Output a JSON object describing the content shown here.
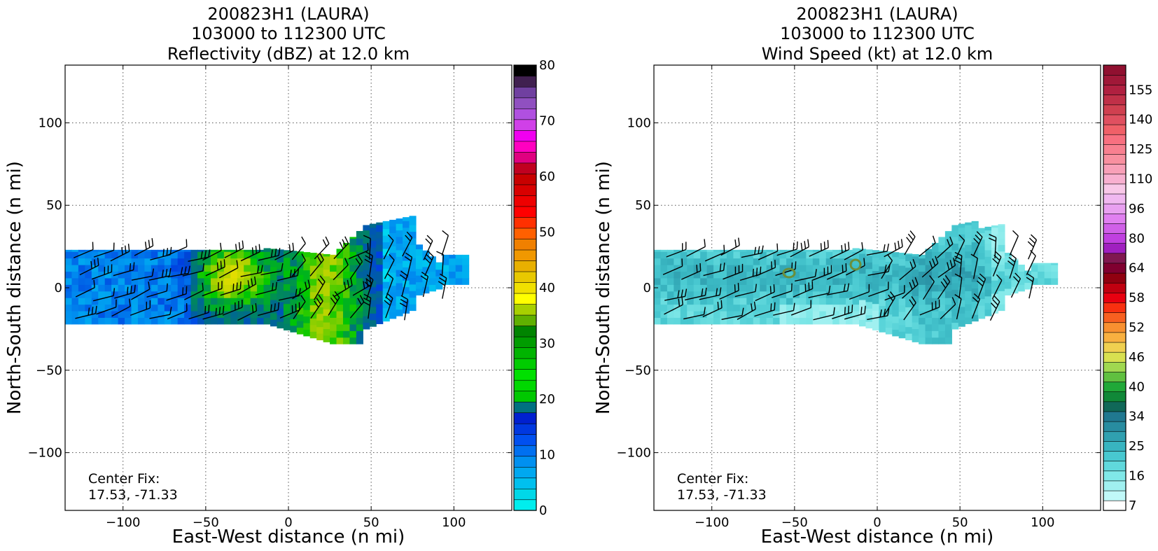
{
  "chart_data": [
    {
      "type": "heatmap",
      "title_lines": [
        "200823H1 (LAURA)",
        "103000 to 112300 UTC",
        "Reflectivity (dBZ) at 12.0 km"
      ],
      "xlabel": "East-West distance (n mi)",
      "ylabel": "North-South distance (n mi)",
      "xlim": [
        -135,
        135
      ],
      "ylim": [
        -135,
        135
      ],
      "xticks": [
        -100,
        -50,
        0,
        50,
        100
      ],
      "yticks": [
        -100,
        -50,
        0,
        50,
        100
      ],
      "grid": true,
      "annotation": [
        "Center Fix:",
        "17.53, -71.33"
      ],
      "colorbar": {
        "min": 0,
        "max": 80,
        "ticks": [
          0,
          10,
          20,
          30,
          40,
          50,
          60,
          70,
          80
        ],
        "colors": [
          "#00eeee",
          "#00d8e8",
          "#00c0ee",
          "#00a8f0",
          "#0090f0",
          "#0070f0",
          "#0050f0",
          "#0038e0",
          "#0020d0",
          "#007080",
          "#00c800",
          "#00d800",
          "#00e000",
          "#00cc00",
          "#00b400",
          "#009c00",
          "#008400",
          "#60b000",
          "#a8d000",
          "#ffff00",
          "#f0e000",
          "#e8c800",
          "#e8b000",
          "#f09800",
          "#f08000",
          "#ff6000",
          "#ff3000",
          "#ff0000",
          "#ee0000",
          "#d80000",
          "#c80000",
          "#c00020",
          "#e00080",
          "#ff00c0",
          "#f000f0",
          "#d040e8",
          "#b050e0",
          "#9050c0",
          "#7040a0",
          "#402050",
          "#000000"
        ]
      },
      "storm_color_stops": [
        "#00e0f0",
        "#0090f0",
        "#0040e0",
        "#007080",
        "#00c800",
        "#a8d000",
        "#f0e000"
      ]
    },
    {
      "type": "heatmap",
      "title_lines": [
        "200823H1 (LAURA)",
        "103000 to 112300 UTC",
        "Wind Speed (kt) at 12.0 km"
      ],
      "xlabel": "East-West distance (n mi)",
      "ylabel": "North-South distance (n mi)",
      "xlim": [
        -135,
        135
      ],
      "ylim": [
        -135,
        135
      ],
      "xticks": [
        -100,
        -50,
        0,
        50,
        100
      ],
      "yticks": [
        -100,
        -50,
        0,
        50,
        100
      ],
      "grid": true,
      "annotation": [
        "Center Fix:",
        "17.53, -71.33"
      ],
      "colorbar": {
        "tick_labels": [
          "7",
          "16",
          "25",
          "34",
          "40",
          "46",
          "52",
          "58",
          "64",
          "80",
          "96",
          "110",
          "125",
          "140",
          "155"
        ],
        "colors": [
          "#ffffff",
          "#c0f8f8",
          "#a0f0f0",
          "#80e8e8",
          "#60d8dc",
          "#48c8d0",
          "#38b4c0",
          "#30a0b0",
          "#288ca0",
          "#207890",
          "#106858",
          "#108838",
          "#20a838",
          "#60c040",
          "#a0d850",
          "#d8e050",
          "#f0d050",
          "#f8b040",
          "#f89030",
          "#f86020",
          "#f83010",
          "#e80010",
          "#c00010",
          "#900010",
          "#800030",
          "#801850",
          "#a020c0",
          "#c040e0",
          "#d060e8",
          "#e080f0",
          "#e8a0f0",
          "#f0b8f0",
          "#f8c8e8",
          "#f8b0d0",
          "#f8a0b8",
          "#f890a0",
          "#f88090",
          "#f87080",
          "#f06068",
          "#e05060",
          "#d04050",
          "#c03048",
          "#b02040",
          "#a01838",
          "#901030"
        ]
      },
      "storm_color_stops": [
        "#a0f0f0",
        "#80e8e8",
        "#60d8dc",
        "#48c8d0",
        "#38b4c0",
        "#30a0b0",
        "#288ca0"
      ]
    }
  ]
}
